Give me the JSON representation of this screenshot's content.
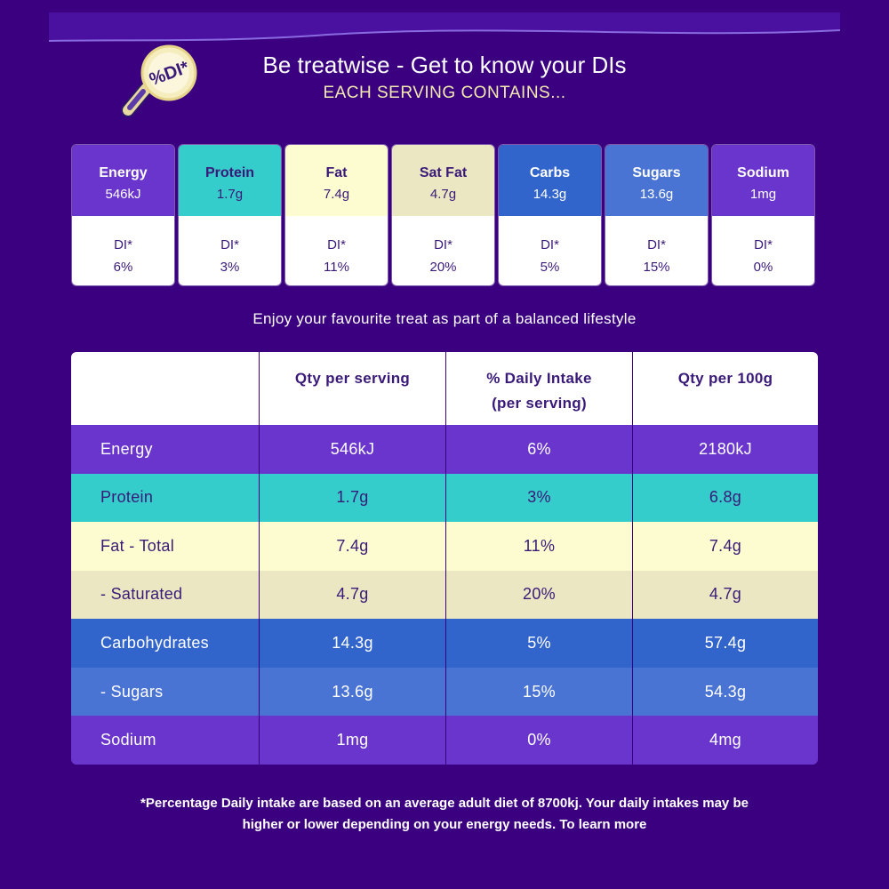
{
  "header": {
    "title": "Be treatwise - Get to know your DIs",
    "subtitle": "EACH SERVING CONTAINS...",
    "logo_text": "%DI*"
  },
  "colors": {
    "background": "#3a0080",
    "energy": "#6a35cc",
    "protein": "#35cccc",
    "fat": "#fdfcd0",
    "sat_fat": "#ebe7c2",
    "carbs": "#3265cc",
    "sugars": "#4a74d4",
    "sodium": "#6a35cc"
  },
  "cards": [
    {
      "name": "Energy",
      "value": "546kJ",
      "di_label": "DI*",
      "di": "6%",
      "bg": "#6a35cc",
      "fg": "#ffffff"
    },
    {
      "name": "Protein",
      "value": "1.7g",
      "di_label": "DI*",
      "di": "3%",
      "bg": "#35cccc",
      "fg": "#3a1a78"
    },
    {
      "name": "Fat",
      "value": "7.4g",
      "di_label": "DI*",
      "di": "11%",
      "bg": "#fdfcd0",
      "fg": "#3a1a78"
    },
    {
      "name": "Sat Fat",
      "value": "4.7g",
      "di_label": "DI*",
      "di": "20%",
      "bg": "#ebe7c2",
      "fg": "#3a1a78"
    },
    {
      "name": "Carbs",
      "value": "14.3g",
      "di_label": "DI*",
      "di": "5%",
      "bg": "#3265cc",
      "fg": "#ffffff"
    },
    {
      "name": "Sugars",
      "value": "13.6g",
      "di_label": "DI*",
      "di": "15%",
      "bg": "#4a74d4",
      "fg": "#ffffff"
    },
    {
      "name": "Sodium",
      "value": "1mg",
      "di_label": "DI*",
      "di": "0%",
      "bg": "#6a35cc",
      "fg": "#ffffff"
    }
  ],
  "tagline": "Enjoy your favourite treat as part of a balanced lifestyle",
  "table": {
    "headers": [
      "",
      "Qty per serving",
      "% Daily Intake\n(per serving)",
      "Qty per 100g"
    ],
    "rows": [
      {
        "label": "Energy",
        "serving": "546kJ",
        "daily": "6%",
        "per100": "2180kJ",
        "bg": "#6a35cc",
        "fg": "#ffffff"
      },
      {
        "label": "Protein",
        "serving": "1.7g",
        "daily": "3%",
        "per100": "6.8g",
        "bg": "#35cccc",
        "fg": "#3a1a78"
      },
      {
        "label": "Fat - Total",
        "serving": "7.4g",
        "daily": "11%",
        "per100": "7.4g",
        "bg": "#fdfcd0",
        "fg": "#3a1a78"
      },
      {
        "label": "- Saturated",
        "serving": "4.7g",
        "daily": "20%",
        "per100": "4.7g",
        "bg": "#ebe7c2",
        "fg": "#3a1a78"
      },
      {
        "label": "Carbohydrates",
        "serving": "14.3g",
        "daily": "5%",
        "per100": "57.4g",
        "bg": "#3265cc",
        "fg": "#ffffff"
      },
      {
        "label": "- Sugars",
        "serving": "13.6g",
        "daily": "15%",
        "per100": "54.3g",
        "bg": "#4a74d4",
        "fg": "#ffffff"
      },
      {
        "label": "Sodium",
        "serving": "1mg",
        "daily": "0%",
        "per100": "4mg",
        "bg": "#6a35cc",
        "fg": "#ffffff"
      }
    ]
  },
  "footnote": "*Percentage Daily intake are based on an average adult diet of 8700kj. Your daily intakes may be higher or lower depending on your energy needs. To learn more"
}
